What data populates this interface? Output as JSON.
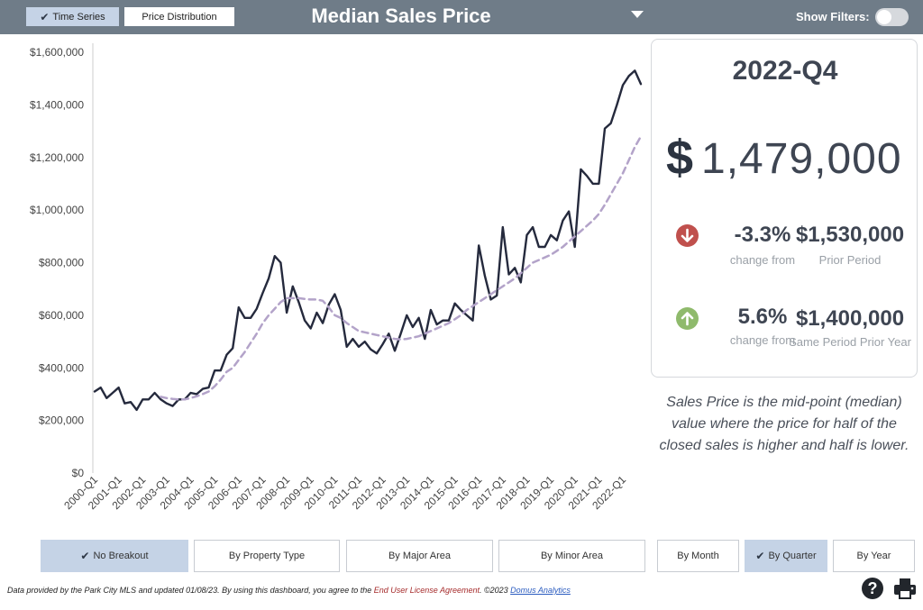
{
  "header": {
    "title": "Median Sales Price",
    "tabs": [
      {
        "label": "Time Series",
        "active": true
      },
      {
        "label": "Price Distribution",
        "active": false
      }
    ],
    "filters_label": "Show Filters:",
    "filters_on": false
  },
  "kpi": {
    "period": "2022-Q4",
    "currency_symbol": "$",
    "value": "1,479,000",
    "prior_period": {
      "direction": "down",
      "percent": "-3.3%",
      "caption": "change from",
      "amount": "$1,530,000",
      "label": "Prior Period"
    },
    "same_period": {
      "direction": "up",
      "percent": "5.6%",
      "caption": "change from",
      "amount": "$1,400,000",
      "label": "Same Period Prior Year"
    }
  },
  "description": "Sales Price is the mid-point (median) value where the price for half of the closed sales is higher and half is lower.",
  "breakout_buttons": [
    {
      "label": "No Breakout",
      "active": true
    },
    {
      "label": "By Property Type",
      "active": false
    },
    {
      "label": "By Major Area",
      "active": false
    },
    {
      "label": "By Minor Area",
      "active": false
    }
  ],
  "period_buttons": [
    {
      "label": "By Month",
      "active": false
    },
    {
      "label": "By Quarter",
      "active": true
    },
    {
      "label": "By Year",
      "active": false
    }
  ],
  "footer": {
    "text_before": "Data provided by the Park City MLS and updated 01/08/23.  By using this dashboard, you agree to the ",
    "eula_link": "End User License Agreement",
    "text_middle": ".  ©2023 ",
    "domus_link": "Domus Analytics"
  },
  "colors": {
    "header_bg": "#6f7c88",
    "active_button": "#c5d3e6",
    "series_line": "#252a3d",
    "trend_line": "#b3a3c9",
    "down_icon": "#c0504d",
    "up_icon": "#8fba6c"
  },
  "chart_data": {
    "type": "line",
    "ylim": [
      0,
      1600000
    ],
    "y_ticks": [
      0,
      200000,
      400000,
      600000,
      800000,
      1000000,
      1200000,
      1400000,
      1600000
    ],
    "y_tick_labels": [
      "$0",
      "$200,000",
      "$400,000",
      "$600,000",
      "$800,000",
      "$1,000,000",
      "$1,200,000",
      "$1,400,000",
      "$1,600,000"
    ],
    "x_tick_labels": [
      "2000-Q1",
      "2001-Q1",
      "2002-Q1",
      "2003-Q1",
      "2004-Q1",
      "2005-Q1",
      "2006-Q1",
      "2007-Q1",
      "2008-Q1",
      "2009-Q1",
      "2010-Q1",
      "2011-Q1",
      "2012-Q1",
      "2013-Q1",
      "2014-Q1",
      "2015-Q1",
      "2016-Q1",
      "2017-Q1",
      "2018-Q1",
      "2019-Q1",
      "2020-Q1",
      "2021-Q1",
      "2022-Q1"
    ],
    "grid": false,
    "series": [
      {
        "values": [
          310000,
          325000,
          285000,
          305000,
          325000,
          265000,
          270000,
          240000,
          280000,
          280000,
          305000,
          280000,
          265000,
          255000,
          280000,
          280000,
          305000,
          300000,
          320000,
          325000,
          390000,
          390000,
          450000,
          475000,
          630000,
          590000,
          590000,
          625000,
          685000,
          740000,
          825000,
          800000,
          610000,
          710000,
          650000,
          580000,
          550000,
          610000,
          570000,
          640000,
          680000,
          620000,
          480000,
          510000,
          480000,
          500000,
          470000,
          455000,
          490000,
          530000,
          465000,
          530000,
          600000,
          555000,
          590000,
          510000,
          620000,
          565000,
          580000,
          580000,
          645000,
          620000,
          600000,
          580000,
          865000,
          750000,
          660000,
          675000,
          935000,
          755000,
          780000,
          725000,
          905000,
          935000,
          860000,
          860000,
          905000,
          885000,
          960000,
          995000,
          860000,
          1155000,
          1130000,
          1100000,
          1100000,
          1310000,
          1330000,
          1400000,
          1475000,
          1510000,
          1530000,
          1479000
        ]
      },
      {
        "style": "dashed",
        "values": [
          null,
          null,
          null,
          null,
          null,
          null,
          null,
          null,
          null,
          null,
          null,
          290000,
          285000,
          282000,
          280000,
          280000,
          285000,
          292000,
          300000,
          310000,
          330000,
          355000,
          385000,
          400000,
          430000,
          460000,
          495000,
          530000,
          570000,
          600000,
          625000,
          650000,
          665000,
          665000,
          665000,
          662000,
          660000,
          660000,
          655000,
          630000,
          600000,
          590000,
          570000,
          555000,
          540000,
          535000,
          530000,
          525000,
          520000,
          515000,
          510000,
          508000,
          510000,
          515000,
          520000,
          530000,
          540000,
          550000,
          560000,
          570000,
          585000,
          600000,
          620000,
          635000,
          650000,
          665000,
          680000,
          695000,
          710000,
          725000,
          740000,
          760000,
          780000,
          800000,
          810000,
          820000,
          830000,
          845000,
          860000,
          880000,
          900000,
          920000,
          940000,
          960000,
          985000,
          1020000,
          1060000,
          1100000,
          1140000,
          1190000,
          1240000,
          1280000
        ]
      }
    ]
  }
}
